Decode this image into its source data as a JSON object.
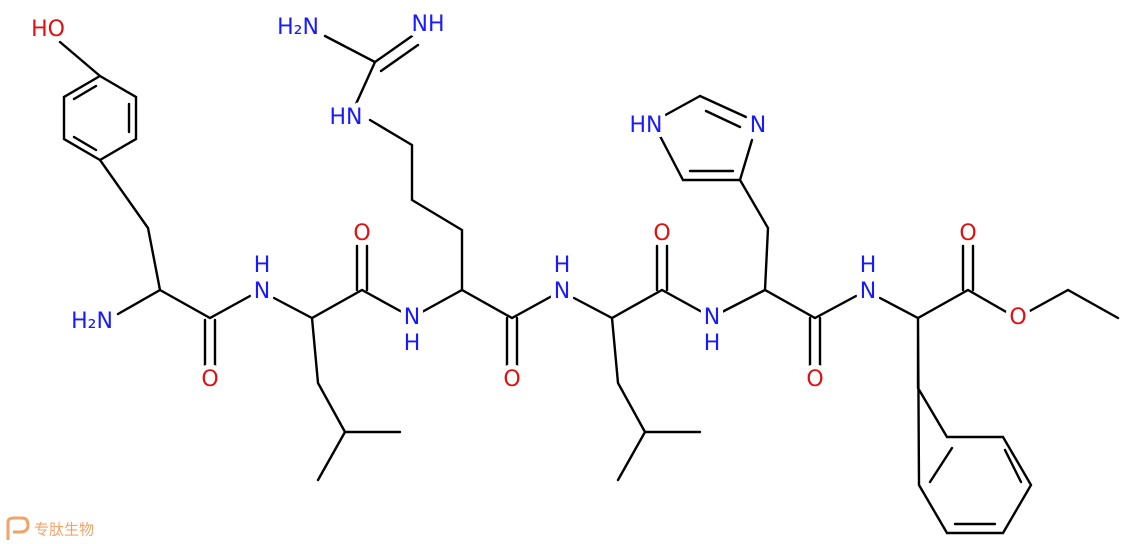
{
  "atoms": [
    "HO",
    "H₂N",
    "NH",
    "HN",
    "HN",
    "N",
    "H₂N",
    "H",
    "N",
    "O",
    "O",
    "N",
    "H",
    "O",
    "H",
    "N",
    "O",
    "N",
    "H",
    "O",
    "H",
    "N",
    "O",
    "O"
  ],
  "watermark": "专肽生物"
}
